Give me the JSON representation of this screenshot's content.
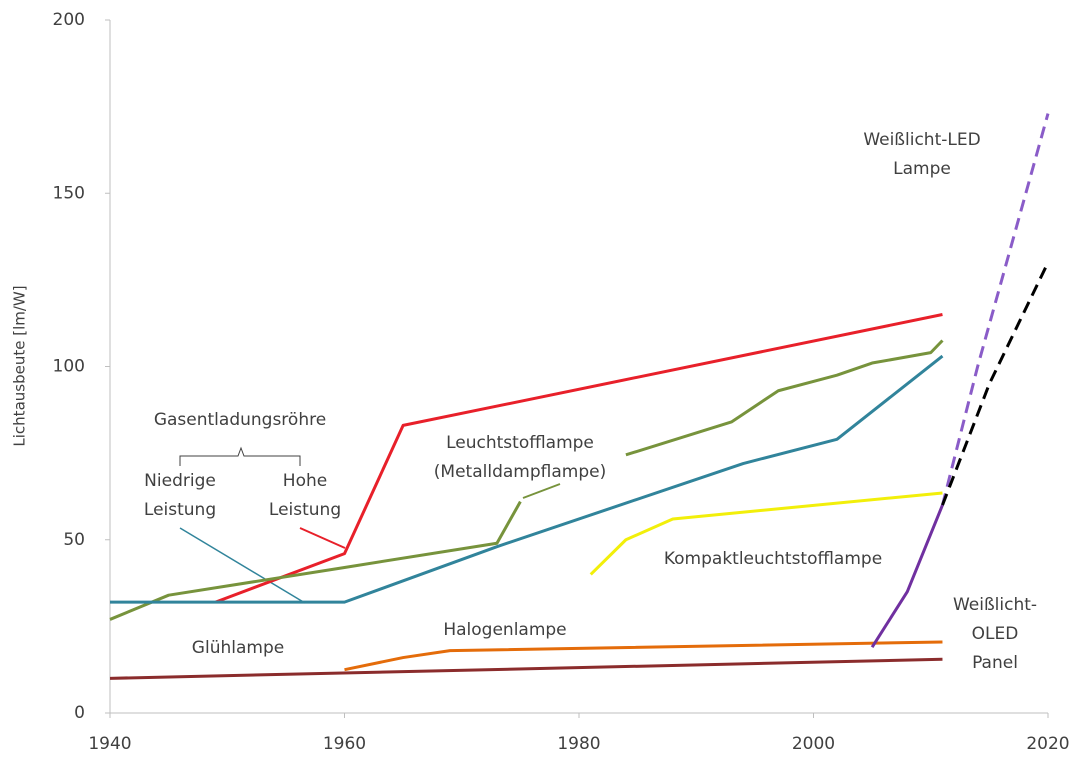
{
  "chart_data": {
    "type": "line",
    "y_label": "Lichtausbeute [lm/W]",
    "xlim": [
      1940,
      2020
    ],
    "ylim": [
      0,
      200
    ],
    "xticks": [
      1940,
      1960,
      1980,
      2000,
      2020
    ],
    "yticks": [
      0,
      50,
      100,
      150,
      200
    ],
    "grid": false,
    "series": [
      {
        "color": "#e8202a",
        "dash": false,
        "x": [
          1949,
          1960,
          1965,
          2011
        ],
        "values": [
          32,
          46,
          83,
          115
        ]
      },
      {
        "color": "#77933c",
        "dash": false,
        "x": [
          1940,
          1945,
          1960,
          1973,
          1975,
          1980,
          1984,
          1993,
          1997,
          2002,
          2005,
          2010,
          2011
        ],
        "values": [
          27,
          34,
          42,
          49,
          61,
          null,
          74.5,
          84,
          93,
          97.5,
          101,
          104,
          107.5
        ]
      },
      {
        "color": "#31849b",
        "dash": false,
        "x": [
          1940,
          1960,
          1973,
          1994,
          2002,
          2011
        ],
        "values": [
          32,
          32,
          48,
          72,
          79,
          103
        ]
      },
      {
        "color": "#f2ef0a",
        "dash": false,
        "x": [
          1981,
          1984,
          1988,
          2011
        ],
        "values": [
          40,
          50,
          56,
          63.5
        ]
      },
      {
        "color": "#e46c0a",
        "dash": false,
        "x": [
          1960,
          1965,
          1969,
          2011
        ],
        "values": [
          12.5,
          16,
          18,
          20.5
        ]
      },
      {
        "color": "#8b2c2c",
        "dash": false,
        "x": [
          1940,
          2011
        ],
        "values": [
          10,
          15.5
        ]
      },
      {
        "color": "#7030a0",
        "dash": false,
        "x": [
          2005,
          2008,
          2011
        ],
        "values": [
          19,
          35,
          60
        ]
      },
      {
        "color": "#8a5cc8",
        "dash": true,
        "x": [
          2011,
          2014,
          2020
        ],
        "values": [
          60,
          100,
          173
        ]
      },
      {
        "color": "#000000",
        "dash": true,
        "x": [
          2011,
          2015,
          2020
        ],
        "values": [
          60,
          95,
          130
        ]
      }
    ],
    "annotations": [
      [
        "Gasentladungsröhre"
      ],
      [
        "Niedrige",
        "Leistung"
      ],
      [
        "Hohe",
        "Leistung"
      ],
      [
        "Leuchtstofflampe",
        "(Metalldampflampe)"
      ],
      [
        "Kompaktleuchtstofflampe"
      ],
      [
        "Glühlampe"
      ],
      [
        "Halogenlampe"
      ],
      [
        "Weißlicht-LED",
        "Lampe"
      ],
      [
        "Weißlicht-",
        "OLED",
        "Panel"
      ]
    ]
  }
}
